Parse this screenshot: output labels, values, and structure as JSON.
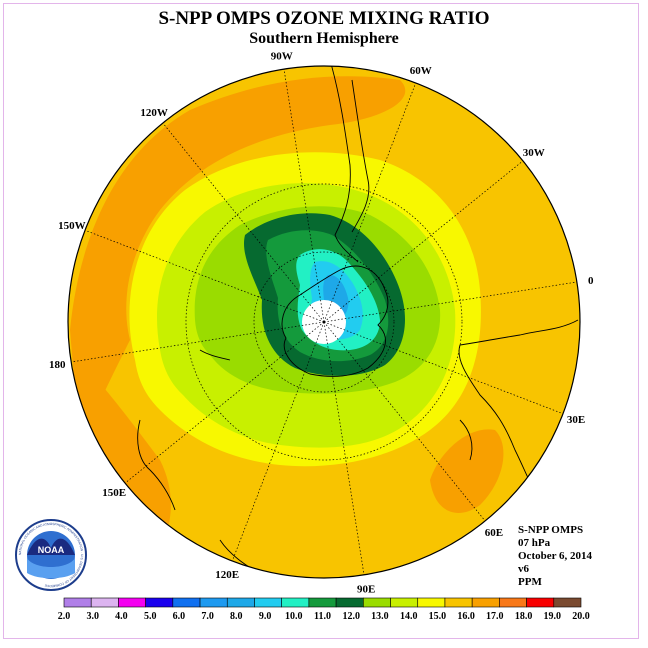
{
  "title": "S-NPP OMPS OZONE MIXING RATIO",
  "subtitle": "Southern Hemisphere",
  "logo_text": "NOAA",
  "logo_ring_text": "NATIONAL OCEANIC AND ATMOSPHERIC ADMINISTRATION · U.S. DEPARTMENT OF COMMERCE",
  "info": {
    "instrument": "S-NPP OMPS",
    "level": "07 hPa",
    "date": "October 6, 2014",
    "version": "v6",
    "units": "PPM"
  },
  "longitude_labels": [
    "90W",
    "60W",
    "30W",
    "0",
    "30E",
    "60E",
    "90E",
    "120E",
    "150E",
    "180",
    "150W",
    "120W"
  ],
  "colorbar": {
    "ticks": [
      "2.0",
      "3.0",
      "4.0",
      "5.0",
      "6.0",
      "7.0",
      "8.0",
      "9.0",
      "10.0",
      "11.0",
      "12.0",
      "13.0",
      "14.0",
      "15.0",
      "16.0",
      "17.0",
      "18.0",
      "19.0",
      "20.0"
    ],
    "colors": [
      "#b07fe8",
      "#dcb4f0",
      "#f400f0",
      "#1a00ee",
      "#1070f0",
      "#1e9af0",
      "#1ea8e8",
      "#22ccf0",
      "#22f0c4",
      "#149a3c",
      "#066a30",
      "#9adc00",
      "#c8f000",
      "#f8f800",
      "#f8c400",
      "#f8a000",
      "#f87818",
      "#f80000",
      "#7a4a30"
    ]
  },
  "map_colors": {
    "outer": "#f8c400",
    "band_orange": "#f8a000",
    "band_yellow": "#f8f800",
    "band_lime": "#c8f000",
    "band_green": "#9adc00",
    "dark_green": "#066a30",
    "mid_green": "#149a3c",
    "aqua": "#22f0c4",
    "cyan": "#22ccf0",
    "blue": "#1ea8e8",
    "pole_mask": "#ffffff"
  }
}
